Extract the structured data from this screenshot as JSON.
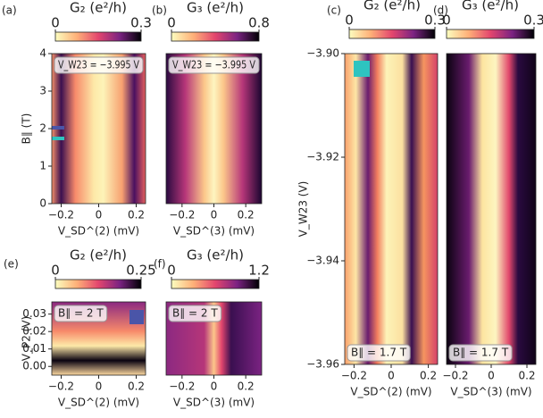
{
  "chart_data": [
    {
      "type": "heatmap",
      "label": "(a)",
      "cbar_title": "G₂ (e²/h)",
      "clim": [
        0,
        0.3
      ],
      "cbar_ticks": [
        0,
        0.3
      ],
      "xlabel": "V_SD^(2) (mV)",
      "ylabel": "B∥ (T)",
      "annotation": "V_W23 = −3.995 V",
      "xlim": [
        -0.25,
        0.25
      ],
      "xticks": [
        {
          "value": -0.2,
          "label": "−0.2"
        },
        0,
        0.2
      ],
      "ylim": [
        0,
        4
      ],
      "yticks": [
        0,
        1,
        2,
        3,
        4
      ]
    },
    {
      "type": "heatmap",
      "label": "(b)",
      "cbar_title": "G₃ (e²/h)",
      "clim": [
        0,
        0.8
      ],
      "cbar_ticks": [
        0,
        0.8
      ],
      "xlabel": "V_SD^(3) (mV)",
      "annotation": "V_W23 = −3.995 V",
      "xlim": [
        -0.3,
        0.3
      ],
      "xticks": [
        {
          "value": -0.2,
          "label": "−0.2"
        },
        0,
        0.2
      ],
      "ylim": [
        0,
        4
      ]
    },
    {
      "type": "heatmap",
      "label": "(c)",
      "cbar_title": "G₂ (e²/h)",
      "clim": [
        0,
        0.3
      ],
      "cbar_ticks": [
        0,
        0.3
      ],
      "xlabel": "V_SD^(2) (mV)",
      "ylabel": "V_W23 (V)",
      "annotation": "B∥ = 1.7 T",
      "xlim": [
        -0.25,
        0.25
      ],
      "xticks": [
        {
          "value": -0.2,
          "label": "−0.2"
        },
        0,
        0.2
      ],
      "ylim": [
        -3.96,
        -3.9
      ],
      "yticks": [
        {
          "value": -3.96,
          "label": "−3.96"
        },
        {
          "value": -3.94,
          "label": "−3.94"
        },
        {
          "value": -3.92,
          "label": "−3.92"
        },
        {
          "value": -3.9,
          "label": "−3.90"
        }
      ]
    },
    {
      "type": "heatmap",
      "label": "(d)",
      "cbar_title": "G₃ (e²/h)",
      "clim": [
        0,
        0.3
      ],
      "cbar_ticks": [
        0,
        0.3
      ],
      "xlabel": "V_SD^(3) (mV)",
      "annotation": "B∥ = 1.7 T",
      "xlim": [
        -0.25,
        0.25
      ],
      "xticks": [
        {
          "value": -0.2,
          "label": "−0.2"
        },
        0,
        0.2
      ],
      "ylim": [
        -3.96,
        -3.9
      ]
    },
    {
      "type": "heatmap",
      "label": "(e)",
      "cbar_title": "G₂ (e²/h)",
      "clim": [
        0,
        0.25
      ],
      "cbar_ticks": [
        0,
        0.25
      ],
      "xlabel": "V_SD^(2) (mV)",
      "ylabel": "V_P2 (V)",
      "annotation": "B∥ = 2 T",
      "xlim": [
        -0.25,
        0.25
      ],
      "xticks": [
        {
          "value": -0.2,
          "label": "−0.2"
        },
        0,
        0.2
      ],
      "ylim": [
        -0.005,
        0.037
      ],
      "yticks": [
        {
          "value": 0,
          "label": "0.00"
        },
        0.01,
        0.02,
        0.03
      ]
    },
    {
      "type": "heatmap",
      "label": "(f)",
      "cbar_title": "G₃ (e²/h)",
      "clim": [
        0,
        1.2
      ],
      "cbar_ticks": [
        0,
        1.2
      ],
      "xlabel": "V_SD^(3) (mV)",
      "annotation": "B∥ = 2 T",
      "xlim": [
        -0.3,
        0.3
      ],
      "xticks": [
        {
          "value": -0.2,
          "label": "−0.2"
        },
        0,
        0.2
      ],
      "ylim": [
        -0.005,
        0.037
      ]
    }
  ]
}
